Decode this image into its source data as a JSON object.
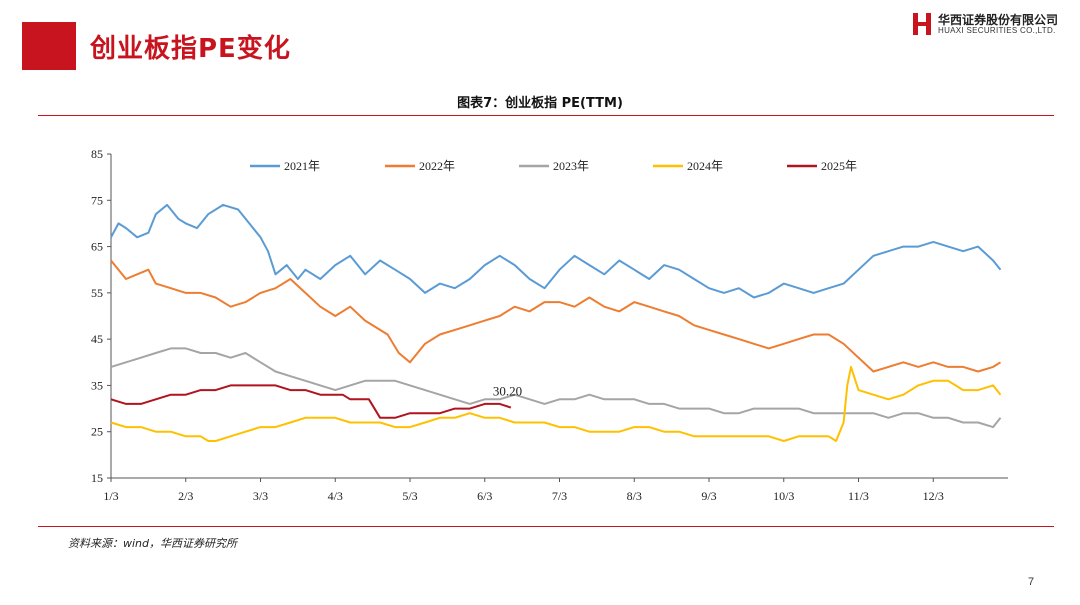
{
  "slide": {
    "title": "创业板指PE变化",
    "chart_title": "图表7：创业板指 PE(TTM)",
    "source": "资料来源：wind，华西证券研究所",
    "page_number": "7"
  },
  "logo": {
    "cn": "华西证券股份有限公司",
    "en": "HUAXI SECURITIES CO.,LTD.",
    "color": "#c8141e"
  },
  "chart_data": {
    "type": "line",
    "title": "图表7：创业板指 PE(TTM)",
    "xlabel": "",
    "ylabel": "",
    "ylim": [
      15,
      85
    ],
    "yticks": [
      15,
      25,
      35,
      45,
      55,
      65,
      75,
      85
    ],
    "xticks": [
      "1/3",
      "2/3",
      "3/3",
      "4/3",
      "5/3",
      "6/3",
      "7/3",
      "8/3",
      "9/3",
      "10/3",
      "11/3",
      "12/3"
    ],
    "grid": false,
    "legend": "top",
    "annotation": {
      "text": "30.20",
      "series": "2025年"
    },
    "series": [
      {
        "name": "2021年",
        "color": "#5b9bd5",
        "x": [
          0,
          0.1,
          0.2,
          0.35,
          0.5,
          0.6,
          0.75,
          0.9,
          1.0,
          1.15,
          1.3,
          1.5,
          1.7,
          1.85,
          2.0,
          2.1,
          2.2,
          2.35,
          2.5,
          2.6,
          2.8,
          3.0,
          3.2,
          3.4,
          3.6,
          3.8,
          4.0,
          4.2,
          4.4,
          4.6,
          4.8,
          5.0,
          5.2,
          5.4,
          5.6,
          5.8,
          6.0,
          6.2,
          6.4,
          6.6,
          6.8,
          7.0,
          7.2,
          7.4,
          7.6,
          7.8,
          8.0,
          8.2,
          8.4,
          8.6,
          8.8,
          9.0,
          9.2,
          9.4,
          9.6,
          9.8,
          10.0,
          10.2,
          10.4,
          10.6,
          10.8,
          11.0,
          11.2,
          11.4,
          11.6,
          11.8,
          11.9
        ],
        "values": [
          67,
          70,
          69,
          67,
          68,
          72,
          74,
          71,
          70,
          69,
          72,
          74,
          73,
          70,
          67,
          64,
          59,
          61,
          58,
          60,
          58,
          61,
          63,
          59,
          62,
          60,
          58,
          55,
          57,
          56,
          58,
          61,
          63,
          61,
          58,
          56,
          60,
          63,
          61,
          59,
          62,
          60,
          58,
          61,
          60,
          58,
          56,
          55,
          56,
          54,
          55,
          57,
          56,
          55,
          56,
          57,
          60,
          63,
          64,
          65,
          65,
          66,
          65,
          64,
          65,
          62,
          60
        ]
      },
      {
        "name": "2022年",
        "color": "#ed7d31",
        "x": [
          0,
          0.1,
          0.2,
          0.35,
          0.5,
          0.6,
          0.8,
          1.0,
          1.2,
          1.4,
          1.6,
          1.8,
          2.0,
          2.2,
          2.4,
          2.6,
          2.8,
          3.0,
          3.2,
          3.4,
          3.6,
          3.7,
          3.85,
          4.0,
          4.2,
          4.4,
          4.6,
          4.8,
          5.0,
          5.2,
          5.4,
          5.6,
          5.8,
          6.0,
          6.2,
          6.4,
          6.6,
          6.8,
          7.0,
          7.2,
          7.4,
          7.6,
          7.8,
          8.0,
          8.2,
          8.4,
          8.6,
          8.8,
          9.0,
          9.2,
          9.4,
          9.6,
          9.8,
          10.0,
          10.2,
          10.4,
          10.6,
          10.8,
          11.0,
          11.2,
          11.4,
          11.6,
          11.8,
          11.9
        ],
        "values": [
          62,
          60,
          58,
          59,
          60,
          57,
          56,
          55,
          55,
          54,
          52,
          53,
          55,
          56,
          58,
          55,
          52,
          50,
          52,
          49,
          47,
          46,
          42,
          40,
          44,
          46,
          47,
          48,
          49,
          50,
          52,
          51,
          53,
          53,
          52,
          54,
          52,
          51,
          53,
          52,
          51,
          50,
          48,
          47,
          46,
          45,
          44,
          43,
          44,
          45,
          46,
          46,
          44,
          41,
          38,
          39,
          40,
          39,
          40,
          39,
          39,
          38,
          39,
          40
        ]
      },
      {
        "name": "2023年",
        "color": "#a5a5a5",
        "x": [
          0,
          0.2,
          0.4,
          0.6,
          0.8,
          1.0,
          1.2,
          1.4,
          1.6,
          1.8,
          2.0,
          2.2,
          2.4,
          2.6,
          2.8,
          3.0,
          3.2,
          3.4,
          3.6,
          3.8,
          4.0,
          4.2,
          4.4,
          4.6,
          4.8,
          5.0,
          5.2,
          5.4,
          5.6,
          5.8,
          6.0,
          6.2,
          6.4,
          6.6,
          6.8,
          7.0,
          7.2,
          7.4,
          7.6,
          7.8,
          8.0,
          8.2,
          8.4,
          8.6,
          8.8,
          9.0,
          9.2,
          9.4,
          9.6,
          9.8,
          10.0,
          10.2,
          10.4,
          10.6,
          10.8,
          11.0,
          11.2,
          11.4,
          11.6,
          11.8,
          11.9
        ],
        "values": [
          39,
          40,
          41,
          42,
          43,
          43,
          42,
          42,
          41,
          42,
          40,
          38,
          37,
          36,
          35,
          34,
          35,
          36,
          36,
          36,
          35,
          34,
          33,
          32,
          31,
          32,
          32,
          33,
          32,
          31,
          32,
          32,
          33,
          32,
          32,
          32,
          31,
          31,
          30,
          30,
          30,
          29,
          29,
          30,
          30,
          30,
          30,
          29,
          29,
          29,
          29,
          29,
          28,
          29,
          29,
          28,
          28,
          27,
          27,
          26,
          28
        ]
      },
      {
        "name": "2024年",
        "color": "#ffc000",
        "x": [
          0,
          0.2,
          0.4,
          0.6,
          0.8,
          1.0,
          1.2,
          1.3,
          1.4,
          1.6,
          1.8,
          2.0,
          2.2,
          2.4,
          2.6,
          2.8,
          3.0,
          3.2,
          3.4,
          3.6,
          3.8,
          4.0,
          4.2,
          4.4,
          4.6,
          4.8,
          5.0,
          5.2,
          5.4,
          5.6,
          5.8,
          6.0,
          6.2,
          6.4,
          6.6,
          6.8,
          7.0,
          7.2,
          7.4,
          7.6,
          7.8,
          8.0,
          8.2,
          8.4,
          8.6,
          8.8,
          9.0,
          9.2,
          9.4,
          9.6,
          9.7,
          9.8,
          9.85,
          9.9,
          10.0,
          10.2,
          10.4,
          10.6,
          10.8,
          11.0,
          11.2,
          11.4,
          11.6,
          11.8,
          11.9
        ],
        "values": [
          27,
          26,
          26,
          25,
          25,
          24,
          24,
          23,
          23,
          24,
          25,
          26,
          26,
          27,
          28,
          28,
          28,
          27,
          27,
          27,
          26,
          26,
          27,
          28,
          28,
          29,
          28,
          28,
          27,
          27,
          27,
          26,
          26,
          25,
          25,
          25,
          26,
          26,
          25,
          25,
          24,
          24,
          24,
          24,
          24,
          24,
          23,
          24,
          24,
          24,
          23,
          27,
          35,
          39,
          34,
          33,
          32,
          33,
          35,
          36,
          36,
          34,
          34,
          35,
          33
        ]
      },
      {
        "name": "2025年",
        "color": "#b0141e",
        "x": [
          0,
          0.2,
          0.4,
          0.6,
          0.8,
          1.0,
          1.2,
          1.4,
          1.6,
          1.8,
          2.0,
          2.2,
          2.4,
          2.6,
          2.8,
          3.0,
          3.1,
          3.2,
          3.3,
          3.45,
          3.6,
          3.8,
          4.0,
          4.2,
          4.4,
          4.6,
          4.8,
          5.0,
          5.2,
          5.35
        ],
        "values": [
          32,
          31,
          31,
          32,
          33,
          33,
          34,
          34,
          35,
          35,
          35,
          35,
          34,
          34,
          33,
          33,
          33,
          32,
          32,
          32,
          28,
          28,
          29,
          29,
          29,
          30,
          30,
          31,
          31,
          30.2
        ]
      }
    ]
  }
}
